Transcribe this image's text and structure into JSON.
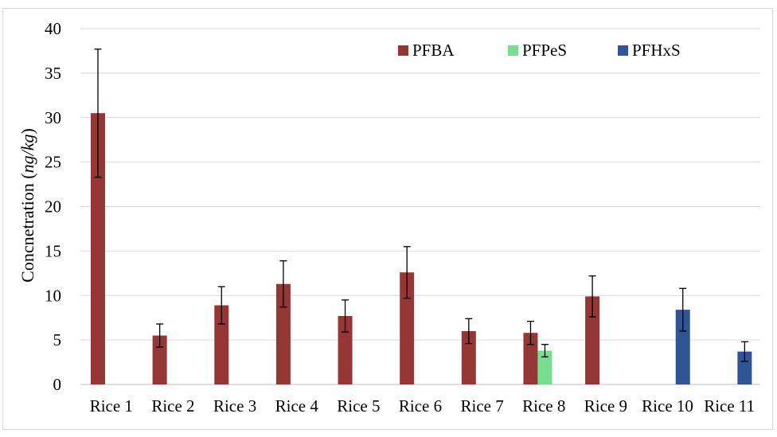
{
  "chart_data": {
    "type": "bar",
    "title": "",
    "xlabel": "",
    "ylabel": "Concnetration",
    "ylabel_unit": "ng/kg",
    "ylim": [
      0,
      40
    ],
    "yticks": [
      0,
      5,
      10,
      15,
      20,
      25,
      30,
      35,
      40
    ],
    "grid": "horizontal",
    "legend_position": "top-right",
    "categories": [
      "Rice 1",
      "Rice 2",
      "Rice 3",
      "Rice 4",
      "Rice 5",
      "Rice 6",
      "Rice 7",
      "Rice 8",
      "Rice 9",
      "Rice 10",
      "Rice 11"
    ],
    "series": [
      {
        "name": "PFBA",
        "color": "#953735",
        "values": [
          30.5,
          5.5,
          8.9,
          11.3,
          7.7,
          12.6,
          6.0,
          5.8,
          9.9,
          null,
          null
        ],
        "errors": [
          7.2,
          1.3,
          2.1,
          2.6,
          1.8,
          2.9,
          1.4,
          1.3,
          2.3,
          null,
          null
        ]
      },
      {
        "name": "PFPeS",
        "color": "#77dd90",
        "values": [
          null,
          null,
          null,
          null,
          null,
          null,
          null,
          3.8,
          null,
          null,
          null
        ],
        "errors": [
          null,
          null,
          null,
          null,
          null,
          null,
          null,
          0.7,
          null,
          null,
          null
        ]
      },
      {
        "name": "PFHxS",
        "color": "#2f5597",
        "values": [
          null,
          null,
          null,
          null,
          null,
          null,
          null,
          null,
          null,
          8.4,
          3.7
        ],
        "errors": [
          null,
          null,
          null,
          null,
          null,
          null,
          null,
          null,
          null,
          2.4,
          1.1
        ]
      }
    ]
  }
}
